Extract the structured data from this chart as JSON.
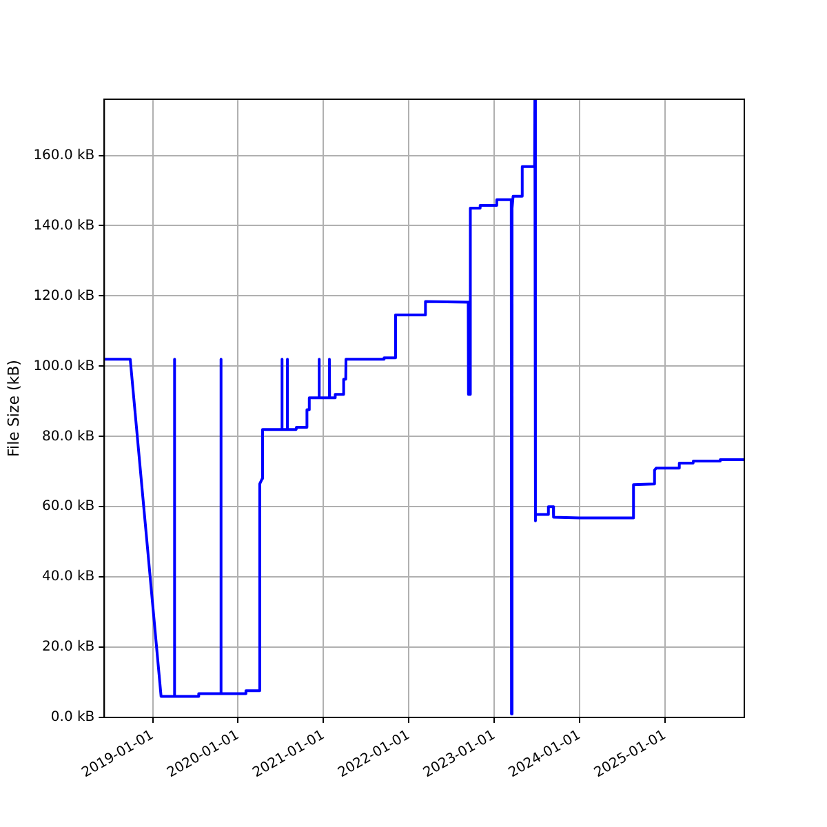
{
  "chart_data": {
    "type": "line",
    "ylabel": "File Size (kB)",
    "color": "#0000ff",
    "grid": true,
    "marker": "none",
    "line_style": "solid",
    "x": [
      "2018-06-08",
      "2018-09-27",
      "2019-02-06",
      "2019-04-02",
      "2019-04-03",
      "2019-04-05",
      "2019-04-06",
      "2019-07-16",
      "2019-07-17",
      "2019-10-19",
      "2019-10-20",
      "2019-10-21",
      "2020-02-03",
      "2020-02-04",
      "2020-04-02",
      "2020-04-03",
      "2020-04-14",
      "2020-04-15",
      "2020-07-06",
      "2020-07-07",
      "2020-07-08",
      "2020-07-29",
      "2020-07-30",
      "2020-07-31",
      "2020-09-06",
      "2020-09-07",
      "2020-10-21",
      "2020-10-22",
      "2020-10-31",
      "2020-11-01",
      "2020-12-12",
      "2020-12-13",
      "2020-12-14",
      "2021-01-25",
      "2021-01-26",
      "2021-01-27",
      "2021-02-19",
      "2021-02-20",
      "2021-03-27",
      "2021-03-28",
      "2021-04-06",
      "2021-04-07",
      "2021-09-16",
      "2021-09-17",
      "2021-11-04",
      "2021-11-05",
      "2022-03-12",
      "2022-03-13",
      "2022-09-12",
      "2022-09-13",
      "2022-09-20",
      "2022-09-21",
      "2022-11-01",
      "2022-11-02",
      "2023-01-11",
      "2023-01-12",
      "2023-03-15",
      "2023-03-16",
      "2023-03-18",
      "2023-03-19",
      "2023-03-23",
      "2023-04-30",
      "2023-05-01",
      "2023-06-23",
      "2023-06-24",
      "2023-06-25",
      "2023-06-28",
      "2023-08-20",
      "2023-08-21",
      "2023-09-11",
      "2023-09-12",
      "2024-01-01",
      "2024-08-18",
      "2024-08-19",
      "2024-11-16",
      "2024-11-17",
      "2024-11-24",
      "2025-03-02",
      "2025-03-03",
      "2025-05-01",
      "2025-05-02",
      "2025-08-24",
      "2025-08-25",
      "2025-12-06"
    ],
    "values": [
      102,
      102,
      6,
      6,
      102,
      102,
      6,
      6,
      6.8,
      6.8,
      102,
      6.8,
      6.8,
      7.6,
      7.6,
      66.5,
      68,
      82,
      82,
      102,
      82,
      82,
      102,
      82,
      82,
      82.6,
      82.6,
      87.6,
      87.6,
      91,
      91,
      102,
      91,
      91,
      102,
      91,
      91,
      92,
      92,
      96.3,
      96.3,
      102,
      102,
      102.4,
      102.4,
      114.6,
      114.6,
      118.4,
      118.2,
      92,
      92,
      145,
      145,
      145.8,
      145.8,
      147.4,
      147.4,
      1,
      1,
      145,
      148.4,
      148.4,
      156.8,
      156.8,
      176,
      56,
      57.8,
      57.8,
      60,
      60,
      57,
      56.8,
      56.8,
      66.3,
      66.5,
      70.4,
      71,
      71,
      72.4,
      72.4,
      73,
      73,
      73.4,
      73.4
    ],
    "xlim": [
      "2018-06-08",
      "2025-12-06"
    ],
    "xticks": [
      "2019-01-01",
      "2020-01-01",
      "2021-01-01",
      "2022-01-01",
      "2023-01-01",
      "2024-01-01",
      "2025-01-01"
    ],
    "ylim": [
      0,
      176
    ],
    "yticks": [
      {
        "value": 0,
        "label": "0.0 kB"
      },
      {
        "value": 20,
        "label": "20.0 kB"
      },
      {
        "value": 40,
        "label": "40.0 kB"
      },
      {
        "value": 60,
        "label": "60.0 kB"
      },
      {
        "value": 80,
        "label": "80.0 kB"
      },
      {
        "value": 100,
        "label": "100.0 kB"
      },
      {
        "value": 120,
        "label": "120.0 kB"
      },
      {
        "value": 140,
        "label": "140.0 kB"
      },
      {
        "value": 160,
        "label": "160.0 kB"
      }
    ]
  }
}
